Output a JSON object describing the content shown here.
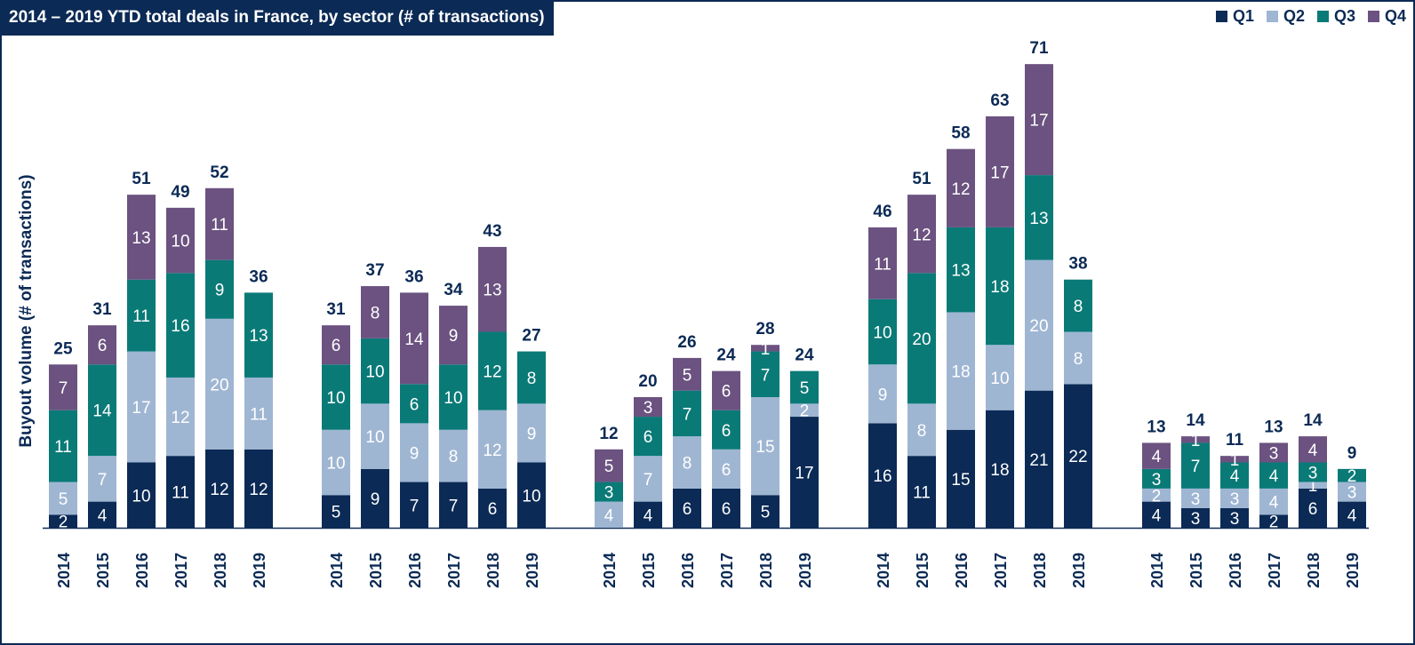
{
  "title": "2014 – 2019 YTD total deals in France, by sector (# of transactions)",
  "colors": {
    "frame": "#0b2a55",
    "text": "#0b2a55"
  },
  "chart_data": {
    "type": "bar",
    "stacked": true,
    "title": "2014 – 2019 YTD total deals in France, by sector (# of transactions)",
    "ylabel": "Buyout volume (# of transactions)",
    "xlabel": "",
    "legend_position": "top-right",
    "ylim": [
      0,
      75
    ],
    "grid": false,
    "categories": [
      "2014",
      "2015",
      "2016",
      "2017",
      "2018",
      "2019"
    ],
    "series": [
      {
        "name": "Q1",
        "color": "#0b2a55"
      },
      {
        "name": "Q2",
        "color": "#9fb6d3"
      },
      {
        "name": "Q3",
        "color": "#0a7a77"
      },
      {
        "name": "Q4",
        "color": "#6b5280"
      }
    ],
    "groups": [
      {
        "bars": [
          {
            "year": "2014",
            "values": [
              2,
              5,
              11,
              7
            ],
            "total": 25
          },
          {
            "year": "2015",
            "values": [
              4,
              7,
              14,
              6
            ],
            "total": 31
          },
          {
            "year": "2016",
            "values": [
              10,
              17,
              11,
              13
            ],
            "total": 51
          },
          {
            "year": "2017",
            "values": [
              11,
              12,
              16,
              10
            ],
            "total": 49
          },
          {
            "year": "2018",
            "values": [
              12,
              20,
              9,
              11
            ],
            "total": 52
          },
          {
            "year": "2019",
            "values": [
              12,
              11,
              13,
              0
            ],
            "total": 36
          }
        ]
      },
      {
        "bars": [
          {
            "year": "2014",
            "values": [
              5,
              10,
              10,
              6
            ],
            "total": 31
          },
          {
            "year": "2015",
            "values": [
              9,
              10,
              10,
              8
            ],
            "total": 37
          },
          {
            "year": "2016",
            "values": [
              7,
              9,
              6,
              14
            ],
            "total": 36
          },
          {
            "year": "2017",
            "values": [
              7,
              8,
              10,
              9
            ],
            "total": 34
          },
          {
            "year": "2018",
            "values": [
              6,
              12,
              12,
              13
            ],
            "total": 43
          },
          {
            "year": "2019",
            "values": [
              10,
              9,
              8,
              0
            ],
            "total": 27
          }
        ]
      },
      {
        "bars": [
          {
            "year": "2014",
            "values": [
              0,
              4,
              3,
              5
            ],
            "total": 12
          },
          {
            "year": "2015",
            "values": [
              4,
              7,
              6,
              3
            ],
            "total": 20
          },
          {
            "year": "2016",
            "values": [
              6,
              8,
              7,
              5
            ],
            "total": 26
          },
          {
            "year": "2017",
            "values": [
              6,
              6,
              6,
              6
            ],
            "total": 24
          },
          {
            "year": "2018",
            "values": [
              5,
              15,
              7,
              1
            ],
            "total": 28
          },
          {
            "year": "2019",
            "values": [
              17,
              2,
              5,
              0
            ],
            "total": 24
          }
        ]
      },
      {
        "bars": [
          {
            "year": "2014",
            "values": [
              16,
              9,
              10,
              11
            ],
            "total": 46
          },
          {
            "year": "2015",
            "values": [
              11,
              8,
              20,
              12
            ],
            "total": 51
          },
          {
            "year": "2016",
            "values": [
              15,
              18,
              13,
              12
            ],
            "total": 58
          },
          {
            "year": "2017",
            "values": [
              18,
              10,
              18,
              17
            ],
            "total": 63
          },
          {
            "year": "2018",
            "values": [
              21,
              20,
              13,
              17
            ],
            "total": 71
          },
          {
            "year": "2019",
            "values": [
              22,
              8,
              8,
              0
            ],
            "total": 38
          }
        ]
      },
      {
        "bars": [
          {
            "year": "2014",
            "values": [
              4,
              2,
              3,
              4
            ],
            "total": 13
          },
          {
            "year": "2015",
            "values": [
              3,
              3,
              7,
              1
            ],
            "total": 14
          },
          {
            "year": "2016",
            "values": [
              3,
              3,
              4,
              1
            ],
            "total": 11
          },
          {
            "year": "2017",
            "values": [
              2,
              4,
              4,
              3
            ],
            "total": 13
          },
          {
            "year": "2018",
            "values": [
              6,
              1,
              3,
              4
            ],
            "total": 14
          },
          {
            "year": "2019",
            "values": [
              4,
              3,
              2,
              0
            ],
            "total": 9
          }
        ]
      }
    ]
  }
}
